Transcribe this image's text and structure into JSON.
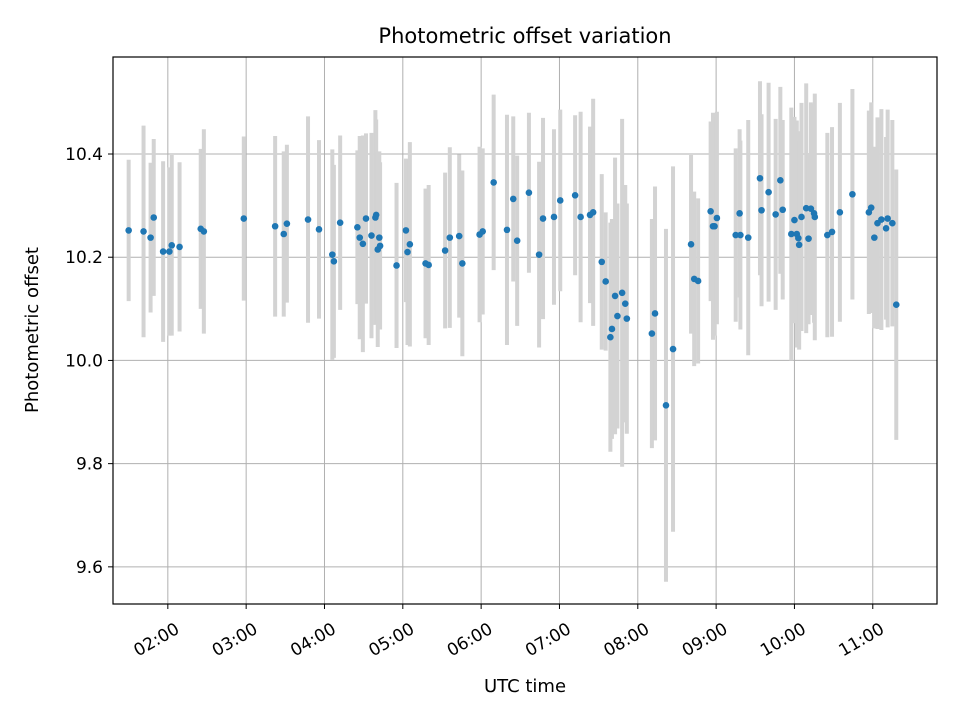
{
  "chart_data": {
    "type": "scatter",
    "title": "Photometric offset variation",
    "xlabel": "UTC time",
    "ylabel": "Photometric offset",
    "xlim": [
      1.3,
      11.82
    ],
    "ylim": [
      9.528,
      10.588
    ],
    "grid": true,
    "x_ticks": [
      {
        "value": 2,
        "label": "02:00"
      },
      {
        "value": 3,
        "label": "03:00"
      },
      {
        "value": 4,
        "label": "04:00"
      },
      {
        "value": 5,
        "label": "05:00"
      },
      {
        "value": 6,
        "label": "06:00"
      },
      {
        "value": 7,
        "label": "07:00"
      },
      {
        "value": 8,
        "label": "08:00"
      },
      {
        "value": 9,
        "label": "09:00"
      },
      {
        "value": 10,
        "label": "10:00"
      },
      {
        "value": 11,
        "label": "11:00"
      }
    ],
    "y_ticks": [
      {
        "value": 9.6,
        "label": "9.6"
      },
      {
        "value": 9.8,
        "label": "9.8"
      },
      {
        "value": 10.0,
        "label": "10.0"
      },
      {
        "value": 10.2,
        "label": "10.2"
      },
      {
        "value": 10.4,
        "label": "10.4"
      }
    ],
    "point_color": "#1f77b4",
    "errorbar_color": "#d3d3d3",
    "x": [
      1.5,
      1.69,
      1.78,
      1.82,
      1.94,
      2.02,
      2.05,
      2.15,
      2.42,
      2.46,
      2.97,
      3.37,
      3.48,
      3.52,
      3.79,
      3.93,
      4.1,
      4.12,
      4.2,
      4.42,
      4.45,
      4.49,
      4.53,
      4.6,
      4.65,
      4.66,
      4.68,
      4.7,
      4.71,
      4.92,
      5.04,
      5.06,
      5.09,
      5.29,
      5.33,
      5.54,
      5.6,
      5.72,
      5.76,
      5.98,
      6.02,
      6.16,
      6.33,
      6.41,
      6.46,
      6.61,
      6.74,
      6.79,
      6.93,
      7.01,
      7.2,
      7.27,
      7.39,
      7.43,
      7.54,
      7.59,
      7.65,
      7.67,
      7.71,
      7.74,
      7.8,
      7.84,
      7.86,
      8.18,
      8.22,
      8.36,
      8.45,
      8.68,
      8.72,
      8.77,
      8.93,
      8.96,
      8.98,
      9.01,
      9.25,
      9.3,
      9.31,
      9.41,
      9.56,
      9.58,
      9.67,
      9.76,
      9.82,
      9.85,
      9.96,
      10.0,
      10.03,
      10.05,
      10.06,
      10.09,
      10.15,
      10.18,
      10.21,
      10.25,
      10.26,
      10.42,
      10.48,
      10.58,
      10.74,
      10.95,
      10.98,
      11.02,
      11.06,
      11.11,
      11.17,
      11.19,
      11.25,
      11.3
    ],
    "y": [
      10.252,
      10.25,
      10.238,
      10.277,
      10.211,
      10.211,
      10.223,
      10.22,
      10.255,
      10.25,
      10.275,
      10.26,
      10.245,
      10.265,
      10.273,
      10.254,
      10.205,
      10.192,
      10.267,
      10.258,
      10.238,
      10.226,
      10.275,
      10.242,
      10.277,
      10.282,
      10.215,
      10.238,
      10.222,
      10.184,
      10.252,
      10.21,
      10.225,
      10.188,
      10.185,
      10.213,
      10.238,
      10.241,
      10.188,
      10.244,
      10.25,
      10.345,
      10.253,
      10.313,
      10.232,
      10.325,
      10.205,
      10.275,
      10.278,
      10.31,
      10.32,
      10.278,
      10.282,
      10.287,
      10.191,
      10.153,
      10.045,
      10.061,
      10.125,
      10.086,
      10.131,
      10.11,
      10.081,
      10.052,
      10.091,
      9.913,
      10.022,
      10.225,
      10.158,
      10.154,
      10.289,
      10.26,
      10.26,
      10.276,
      10.243,
      10.285,
      10.243,
      10.238,
      10.353,
      10.291,
      10.326,
      10.283,
      10.349,
      10.292,
      10.245,
      10.272,
      10.245,
      10.237,
      10.224,
      10.278,
      10.295,
      10.236,
      10.294,
      10.285,
      10.278,
      10.243,
      10.249,
      10.287,
      10.322,
      10.287,
      10.296,
      10.238,
      10.266,
      10.273,
      10.256,
      10.275,
      10.266,
      10.108
    ],
    "err": [
      0.137,
      0.205,
      0.145,
      0.152,
      0.175,
      0.163,
      0.175,
      0.164,
      0.155,
      0.198,
      0.159,
      0.175,
      0.16,
      0.153,
      0.2,
      0.173,
      0.204,
      0.187,
      0.169,
      0.149,
      0.197,
      0.21,
      0.165,
      0.199,
      0.208,
      0.185,
      0.189,
      0.167,
      0.162,
      0.16,
      0.139,
      0.18,
      0.198,
      0.145,
      0.155,
      0.151,
      0.175,
      0.158,
      0.18,
      0.17,
      0.161,
      0.17,
      0.223,
      0.16,
      0.165,
      0.155,
      0.18,
      0.195,
      0.17,
      0.176,
      0.155,
      0.204,
      0.171,
      0.22,
      0.17,
      0.134,
      0.222,
      0.213,
      0.268,
      0.218,
      0.337,
      0.23,
      0.223,
      0.222,
      0.246,
      0.342,
      0.354,
      0.173,
      0.169,
      0.16,
      0.174,
      0.22,
      0.212,
      0.206,
      0.168,
      0.163,
      0.183,
      0.228,
      0.188,
      0.186,
      0.212,
      0.185,
      0.181,
      0.174,
      0.245,
      0.2,
      0.22,
      0.207,
      0.203,
      0.221,
      0.242,
      0.166,
      0.206,
      0.212,
      0.239,
      0.198,
      0.203,
      0.212,
      0.204,
      0.197,
      0.204,
      0.176,
      0.205,
      0.214,
      0.177,
      0.211,
      0.2,
      0.262
    ]
  }
}
